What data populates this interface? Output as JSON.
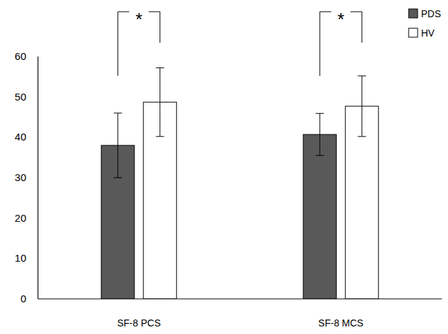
{
  "chart_data": {
    "type": "bar",
    "categories": [
      "SF-8 PCS",
      "SF-8 MCS"
    ],
    "series": [
      {
        "name": "PDS",
        "color": "#595959",
        "values": [
          38.0,
          40.7
        ],
        "errors": [
          8.0,
          5.2
        ]
      },
      {
        "name": "HV",
        "color": "#ffffff",
        "values": [
          48.7,
          47.7
        ],
        "errors": [
          8.5,
          7.5
        ]
      }
    ],
    "annotations": [
      "*",
      "*"
    ],
    "ylim": [
      0,
      60
    ],
    "yticks": [
      0,
      10,
      20,
      30,
      40,
      50,
      60
    ],
    "grid": false,
    "legend": "upper right"
  }
}
